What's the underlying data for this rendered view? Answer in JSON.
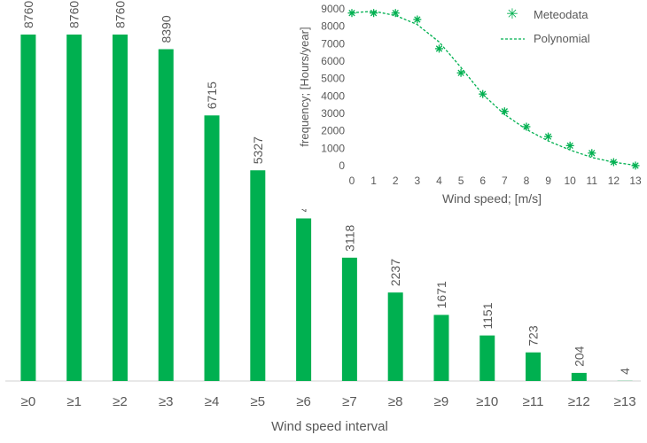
{
  "chart_data": [
    {
      "type": "bar",
      "categories": [
        "≥0",
        "≥1",
        "≥2",
        "≥3",
        "≥4",
        "≥5",
        "≥6",
        "≥7",
        "≥8",
        "≥9",
        "≥10",
        "≥11",
        "≥12",
        "≥13"
      ],
      "values": [
        8760,
        8760,
        8760,
        8390,
        6715,
        5327,
        4111,
        3118,
        2237,
        1671,
        1151,
        723,
        204,
        4
      ],
      "title": "",
      "xlabel": "Wind speed interval",
      "ylabel": "",
      "ylim": [
        0,
        10000
      ],
      "color": "#00b050",
      "data_labels": true,
      "data_label_rotation": "vertical",
      "grid": false
    },
    {
      "type": "scatter",
      "x": [
        0,
        1,
        2,
        3,
        4,
        5,
        6,
        7,
        8,
        9,
        10,
        11,
        12,
        13
      ],
      "series": [
        {
          "name": "Meteodata",
          "type": "scatter",
          "marker": "star",
          "color": "#00b050",
          "values": [
            8760,
            8760,
            8760,
            8390,
            6715,
            5327,
            4111,
            3118,
            2237,
            1671,
            1151,
            723,
            204,
            4
          ]
        },
        {
          "name": "Polynomial",
          "type": "line",
          "style": "dashed",
          "color": "#00b050",
          "values": [
            8776,
            8860,
            8620,
            8100,
            7100,
            5640,
            4090,
            2940,
            2080,
            1420,
            900,
            470,
            200,
            20
          ]
        }
      ],
      "title": "",
      "xlabel": "Wind speed; [m/s]",
      "ylabel": "frequency; [Hours/year]",
      "xlim": [
        0,
        13
      ],
      "ylim": [
        0,
        9000
      ],
      "xticks": [
        "0",
        "1",
        "2",
        "3",
        "4",
        "5",
        "6",
        "7",
        "8",
        "9",
        "10",
        "11",
        "12",
        "13"
      ],
      "yticks": [
        "0",
        "1000",
        "2000",
        "3000",
        "4000",
        "5000",
        "6000",
        "7000",
        "8000",
        "9000"
      ],
      "legend": "top-right",
      "grid": false
    }
  ]
}
